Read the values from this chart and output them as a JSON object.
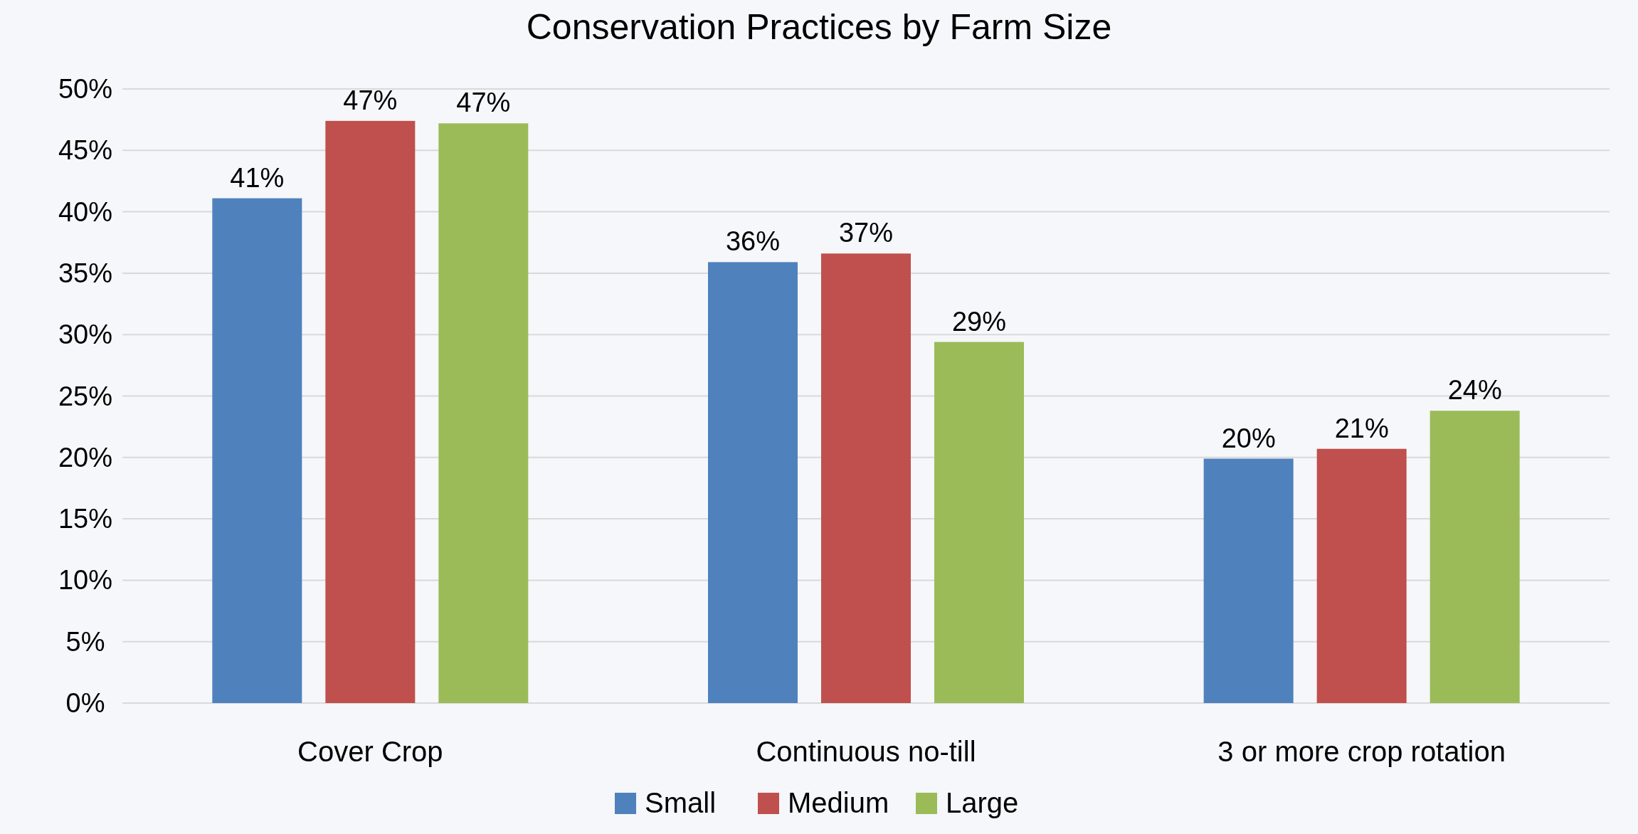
{
  "chart_data": {
    "type": "bar",
    "title": "Conservation Practices by Farm Size",
    "categories": [
      "Cover Crop",
      "Continuous no-till",
      "3 or more crop rotation"
    ],
    "series": [
      {
        "name": "Small",
        "color": "#4f81bd",
        "values": [
          41.1,
          35.9,
          19.9
        ],
        "value_labels": [
          "41%",
          "36%",
          "20%"
        ]
      },
      {
        "name": "Medium",
        "color": "#c0504d",
        "values": [
          47.4,
          36.6,
          20.7
        ],
        "value_labels": [
          "47%",
          "37%",
          "21%"
        ]
      },
      {
        "name": "Large",
        "color": "#9bbb59",
        "values": [
          47.2,
          29.4,
          23.8
        ],
        "value_labels": [
          "47%",
          "29%",
          "24%"
        ]
      }
    ],
    "ylim": [
      0,
      50
    ],
    "yticks": [
      {
        "value": 0,
        "label": "0%"
      },
      {
        "value": 5,
        "label": "5%"
      },
      {
        "value": 10,
        "label": "10%"
      },
      {
        "value": 15,
        "label": "15%"
      },
      {
        "value": 20,
        "label": "20%"
      },
      {
        "value": 25,
        "label": "25%"
      },
      {
        "value": 30,
        "label": "30%"
      },
      {
        "value": 35,
        "label": "35%"
      },
      {
        "value": 40,
        "label": "40%"
      },
      {
        "value": 45,
        "label": "45%"
      },
      {
        "value": 50,
        "label": "50%"
      }
    ],
    "grid": "y",
    "legend": "bottom"
  }
}
